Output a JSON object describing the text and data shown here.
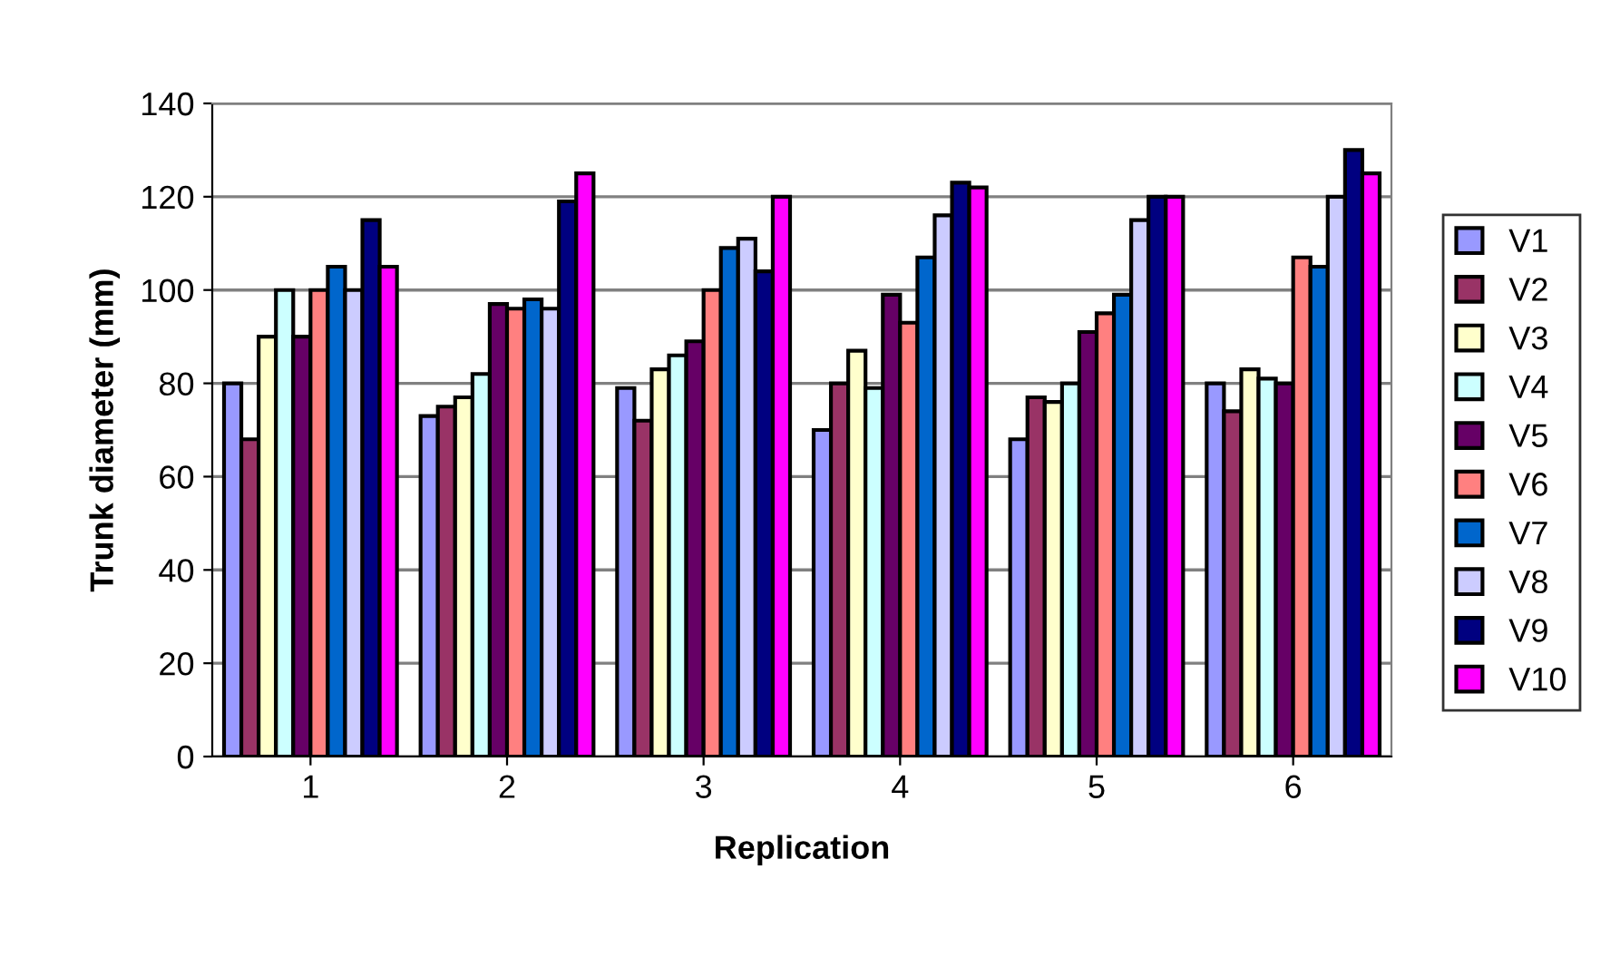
{
  "chart_data": {
    "type": "bar",
    "xlabel": "Replication",
    "ylabel": "Trunk diameter (mm)",
    "categories": [
      "1",
      "2",
      "3",
      "4",
      "5",
      "6"
    ],
    "ylim": [
      0,
      140
    ],
    "yticks": [
      0,
      20,
      40,
      60,
      80,
      100,
      120,
      140
    ],
    "grid": "y",
    "legend": "right",
    "series": [
      {
        "name": "V1",
        "color": "#9999ff",
        "values": [
          80,
          73,
          79,
          70,
          68,
          80
        ]
      },
      {
        "name": "V2",
        "color": "#993366",
        "values": [
          68,
          75,
          72,
          80,
          77,
          74
        ]
      },
      {
        "name": "V3",
        "color": "#ffffcc",
        "values": [
          90,
          77,
          83,
          87,
          76,
          83
        ]
      },
      {
        "name": "V4",
        "color": "#ccffff",
        "values": [
          100,
          82,
          86,
          79,
          80,
          81
        ]
      },
      {
        "name": "V5",
        "color": "#660066",
        "values": [
          90,
          97,
          89,
          99,
          91,
          80
        ]
      },
      {
        "name": "V6",
        "color": "#ff8080",
        "values": [
          100,
          96,
          100,
          93,
          95,
          107
        ]
      },
      {
        "name": "V7",
        "color": "#0066cc",
        "values": [
          105,
          98,
          109,
          107,
          99,
          105
        ]
      },
      {
        "name": "V8",
        "color": "#ccccff",
        "values": [
          100,
          96,
          111,
          116,
          115,
          120
        ]
      },
      {
        "name": "V9",
        "color": "#000080",
        "values": [
          115,
          119,
          104,
          123,
          120,
          130
        ]
      },
      {
        "name": "V10",
        "color": "#ff00ff",
        "values": [
          105,
          125,
          120,
          122,
          120,
          125
        ]
      }
    ]
  }
}
